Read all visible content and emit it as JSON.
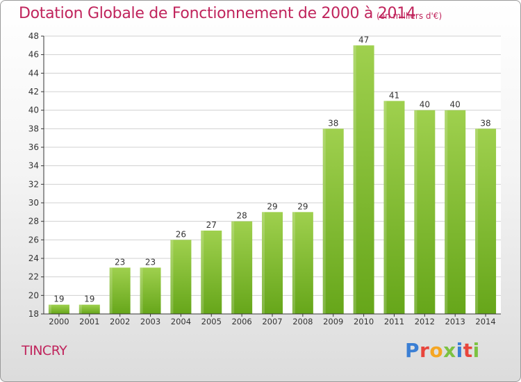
{
  "header": {
    "title": "Dotation Globale de Fonctionnement de 2000 à 2014",
    "subtitle": "(en milliers d'€)"
  },
  "commune": "TINCRY",
  "logo": {
    "text": "Proxiti",
    "letter_colors": [
      "#3b7fd4",
      "#e8453c",
      "#f5a623",
      "#7cc242",
      "#3b7fd4",
      "#e8453c",
      "#7cc242"
    ]
  },
  "colors": {
    "title": "#c0245c",
    "bar_light": "#9fd04e",
    "bar_dark": "#66a61a",
    "grid": "#d0d0d0",
    "axis": "#333333"
  },
  "chart_data": {
    "type": "bar",
    "title": "Dotation Globale de Fonctionnement de 2000 à 2014",
    "subtitle": "(en milliers d'€)",
    "categories": [
      "2000",
      "2001",
      "2002",
      "2003",
      "2004",
      "2005",
      "2006",
      "2007",
      "2008",
      "2009",
      "2010",
      "2011",
      "2012",
      "2013",
      "2014"
    ],
    "values": [
      19,
      19,
      23,
      23,
      26,
      27,
      28,
      29,
      29,
      38,
      47,
      41,
      40,
      40,
      38
    ],
    "ylim": [
      18,
      48
    ],
    "yticks": [
      18,
      20,
      22,
      24,
      26,
      28,
      30,
      32,
      34,
      36,
      38,
      40,
      42,
      44,
      46,
      48
    ],
    "xlabel": "",
    "ylabel": "",
    "grid": true,
    "data_labels": true
  }
}
